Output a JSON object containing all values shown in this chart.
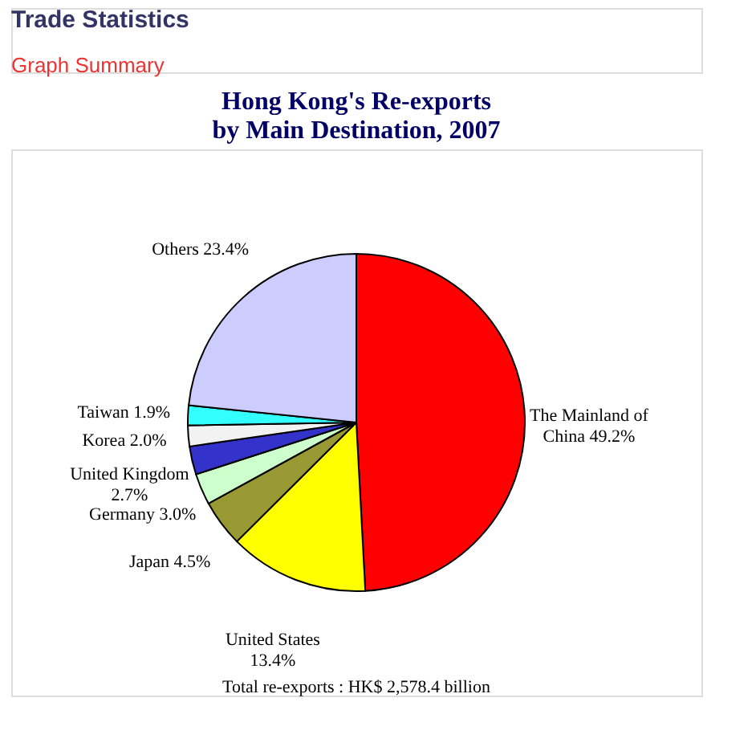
{
  "chart_data": {
    "type": "pie",
    "title": [
      "Hong Kong's Re-exports",
      "by Main Destination, 2007"
    ],
    "categories": [
      "The Mainland of China",
      "United States",
      "Japan",
      "Germany",
      "United Kingdom",
      "Korea",
      "Taiwan",
      "Others"
    ],
    "values": [
      49.2,
      13.4,
      4.5,
      3.0,
      2.7,
      2.0,
      1.9,
      23.4
    ],
    "colors": [
      "#ff0000",
      "#ffff00",
      "#999933",
      "#ccffcc",
      "#3333cc",
      "#f2f2f2",
      "#33ffff",
      "#ccccff"
    ],
    "value_labels": [
      "49.2%",
      "13.4%",
      "4.5%",
      "3.0%",
      "2.7%",
      "2.0%",
      "1.9%",
      "23.4%"
    ],
    "legend": false,
    "annotations": [
      "Trade Statistics",
      "Graph Summary",
      "Total re-exports : HK$ 2,578.4 billion"
    ]
  }
}
